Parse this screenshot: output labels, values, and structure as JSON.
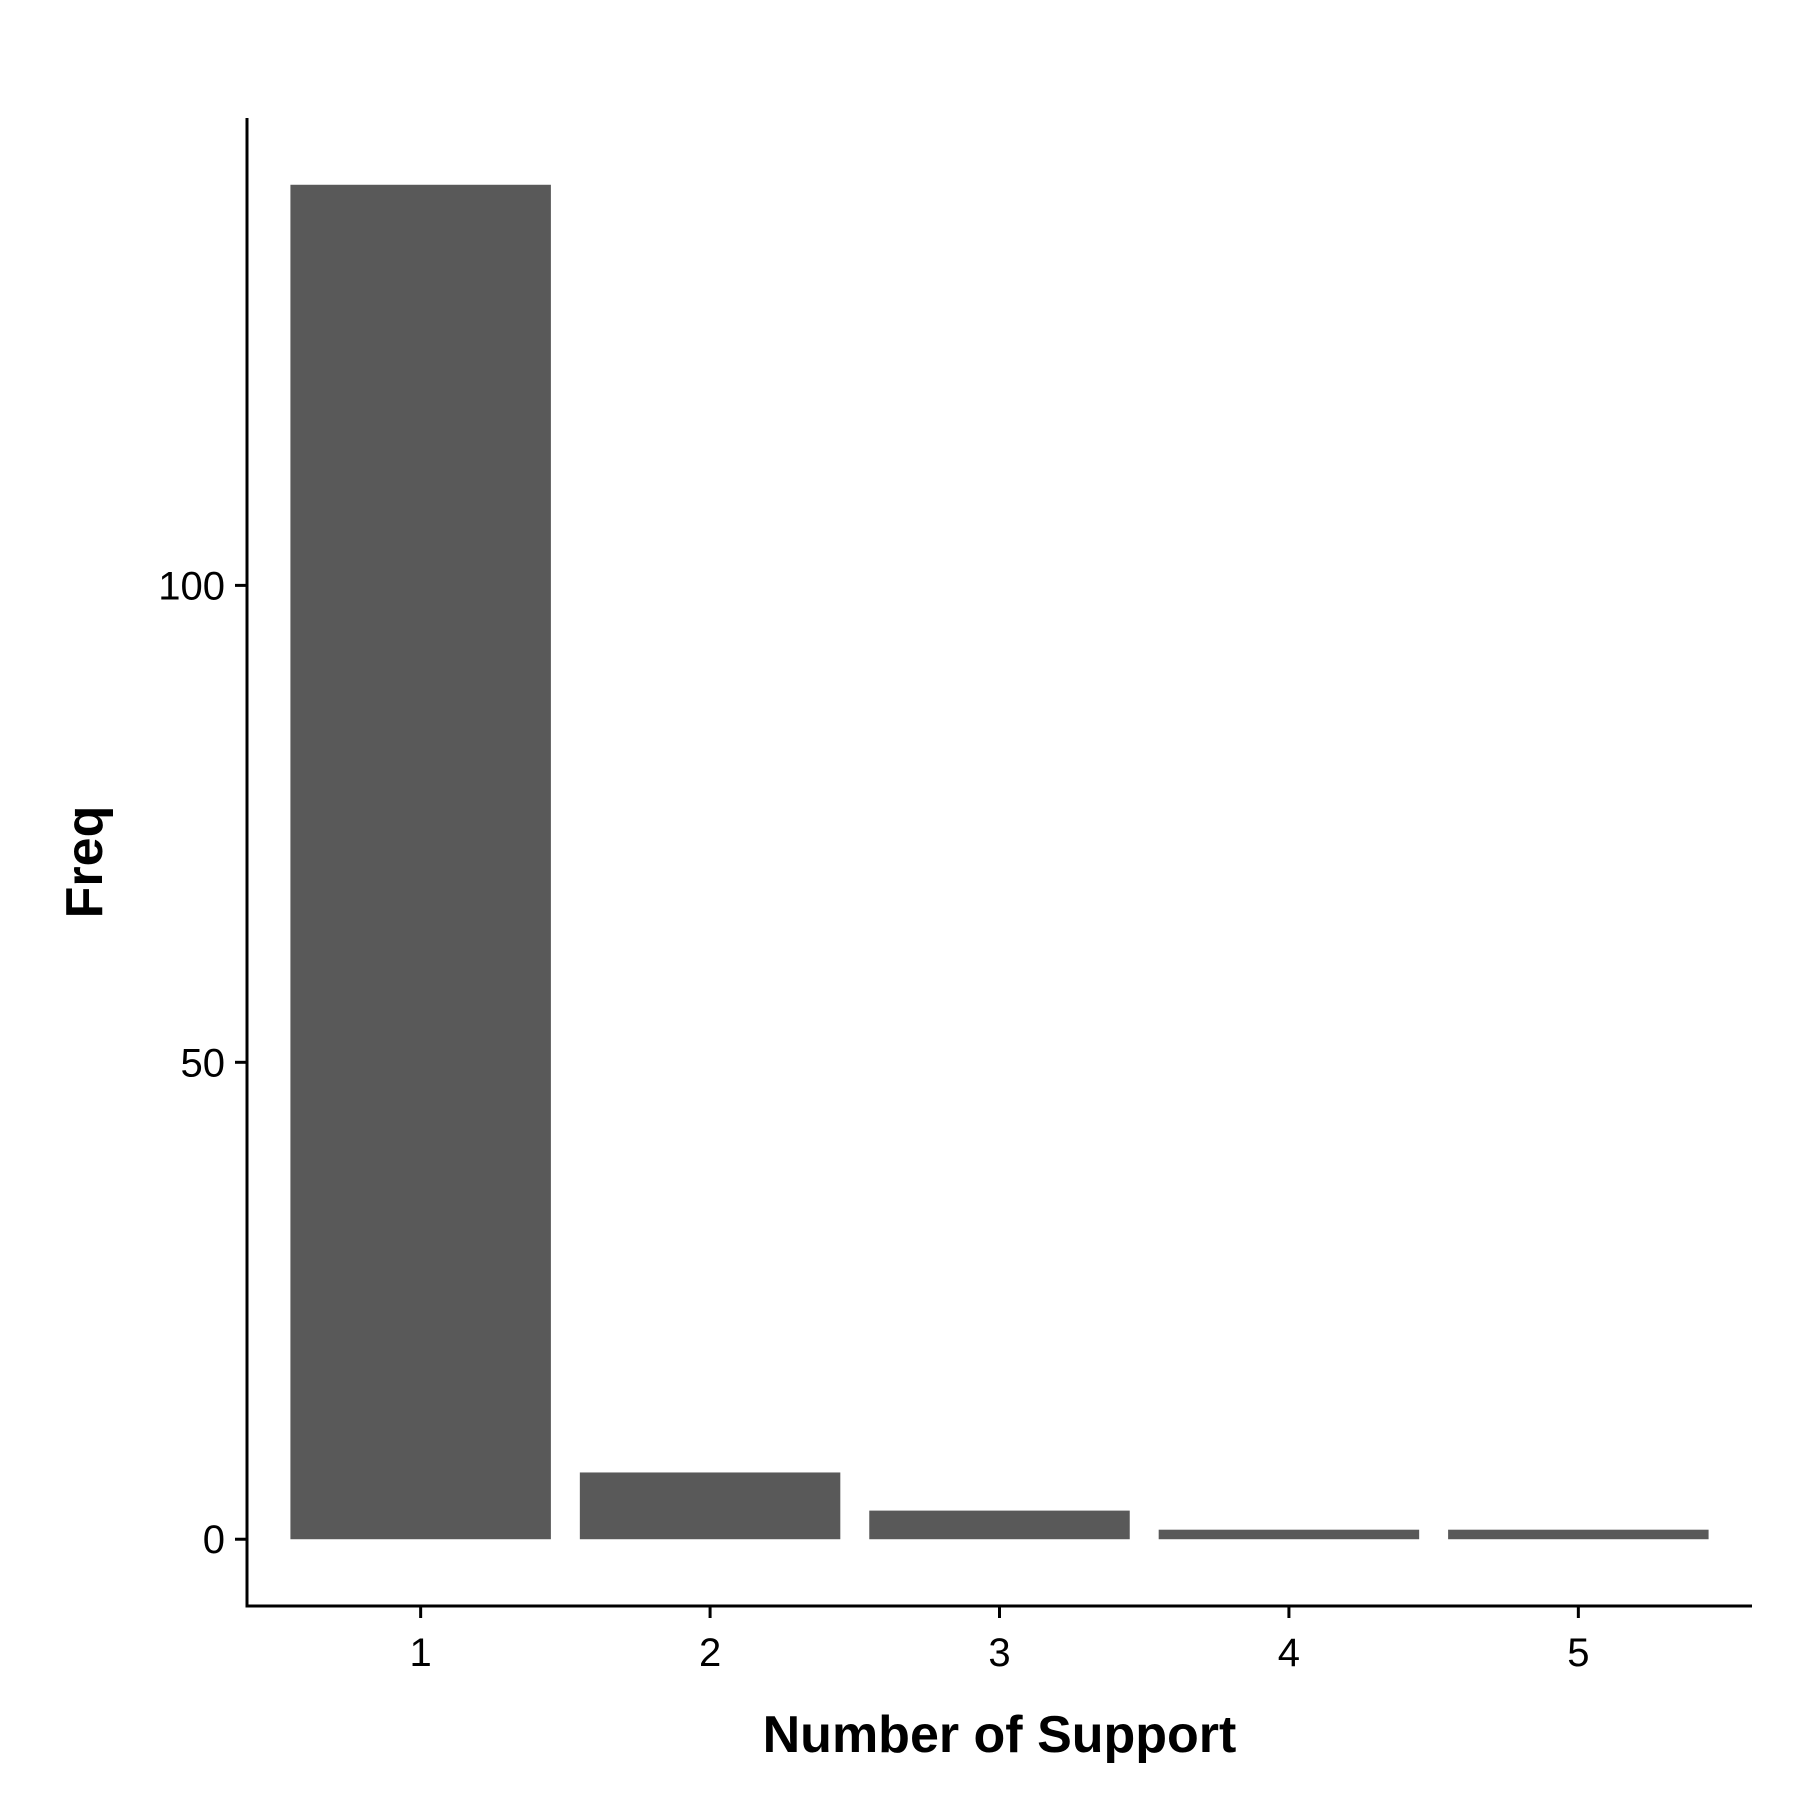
{
  "chart_data": {
    "type": "bar",
    "categories": [
      "1",
      "2",
      "3",
      "4",
      "5"
    ],
    "values": [
      142,
      7,
      3,
      1,
      1
    ],
    "title": "",
    "xlabel": "Number of Support",
    "ylabel": "Freq",
    "ylim": [
      -7,
      149
    ],
    "yticks": [
      0,
      50,
      100
    ],
    "ytick_labels": [
      "0",
      "50",
      "100"
    ],
    "grid": false,
    "legend": "none",
    "bar_color": "#595959",
    "axis_color": "#000000"
  }
}
